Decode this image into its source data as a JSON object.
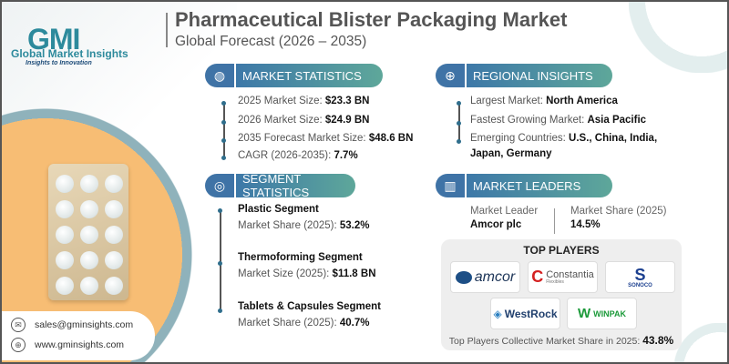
{
  "brand": {
    "logo": "GMI",
    "name": "Global Market Insights",
    "tagline": "Insights to Innovation"
  },
  "header": {
    "title": "Pharmaceutical Blister Packaging Market",
    "subtitle": "Global Forecast (2026 – 2035)"
  },
  "market_statistics": {
    "heading": "MARKET STATISTICS",
    "icon": "globe-chart-icon",
    "items": [
      {
        "label": "2025 Market Size: ",
        "value": "$23.3 BN"
      },
      {
        "label": "2026 Market Size: ",
        "value": "$24.9 BN"
      },
      {
        "label": "2035 Forecast Market Size: ",
        "value": "$48.6 BN"
      },
      {
        "label": "CAGR (2026-2035): ",
        "value": "7.7%"
      }
    ]
  },
  "regional_insights": {
    "heading": "REGIONAL INSIGHTS",
    "icon": "globe-icon",
    "items": [
      {
        "label": "Largest Market: ",
        "value": "North America"
      },
      {
        "label": "Fastest Growing Market: ",
        "value": "Asia Pacific"
      },
      {
        "label": "Emerging Countries: ",
        "value": "U.S., China, India,",
        "value2": "Japan, Germany"
      }
    ]
  },
  "segment_statistics": {
    "heading": "SEGMENT STATISTICS",
    "icon": "target-icon",
    "items": [
      {
        "name": "Plastic Segment",
        "label": "Market Share (2025): ",
        "value": "53.2%"
      },
      {
        "name": "Thermoforming Segment",
        "label": "Market Size (2025): ",
        "value": "$11.8 BN"
      },
      {
        "name": "Tablets & Capsules Segment",
        "label": "Market Share (2025): ",
        "value": "40.7%"
      }
    ]
  },
  "market_leaders": {
    "heading": "MARKET LEADERS",
    "icon": "leaderboard-icon",
    "leader_label": "Market Leader",
    "leader": "Amcor plc",
    "share_label": "Market Share (2025)",
    "share": "14.5%"
  },
  "top_players": {
    "title": "TOP PLAYERS",
    "logos": [
      "amcor",
      "Constantia",
      "Flexibles",
      "SONOCO",
      "WestRock",
      "WINPAK"
    ],
    "footer_label": "Top Players Collective Market Share in 2025: ",
    "footer_value": "43.8%"
  },
  "contact": {
    "email": "sales@gminsights.com",
    "website": "www.gminsights.com"
  },
  "colors": {
    "header_blue": "#3f73a6",
    "header_teal": "#5ea79a",
    "orange": "#f7bd74",
    "accent": "#2d8a9c"
  }
}
